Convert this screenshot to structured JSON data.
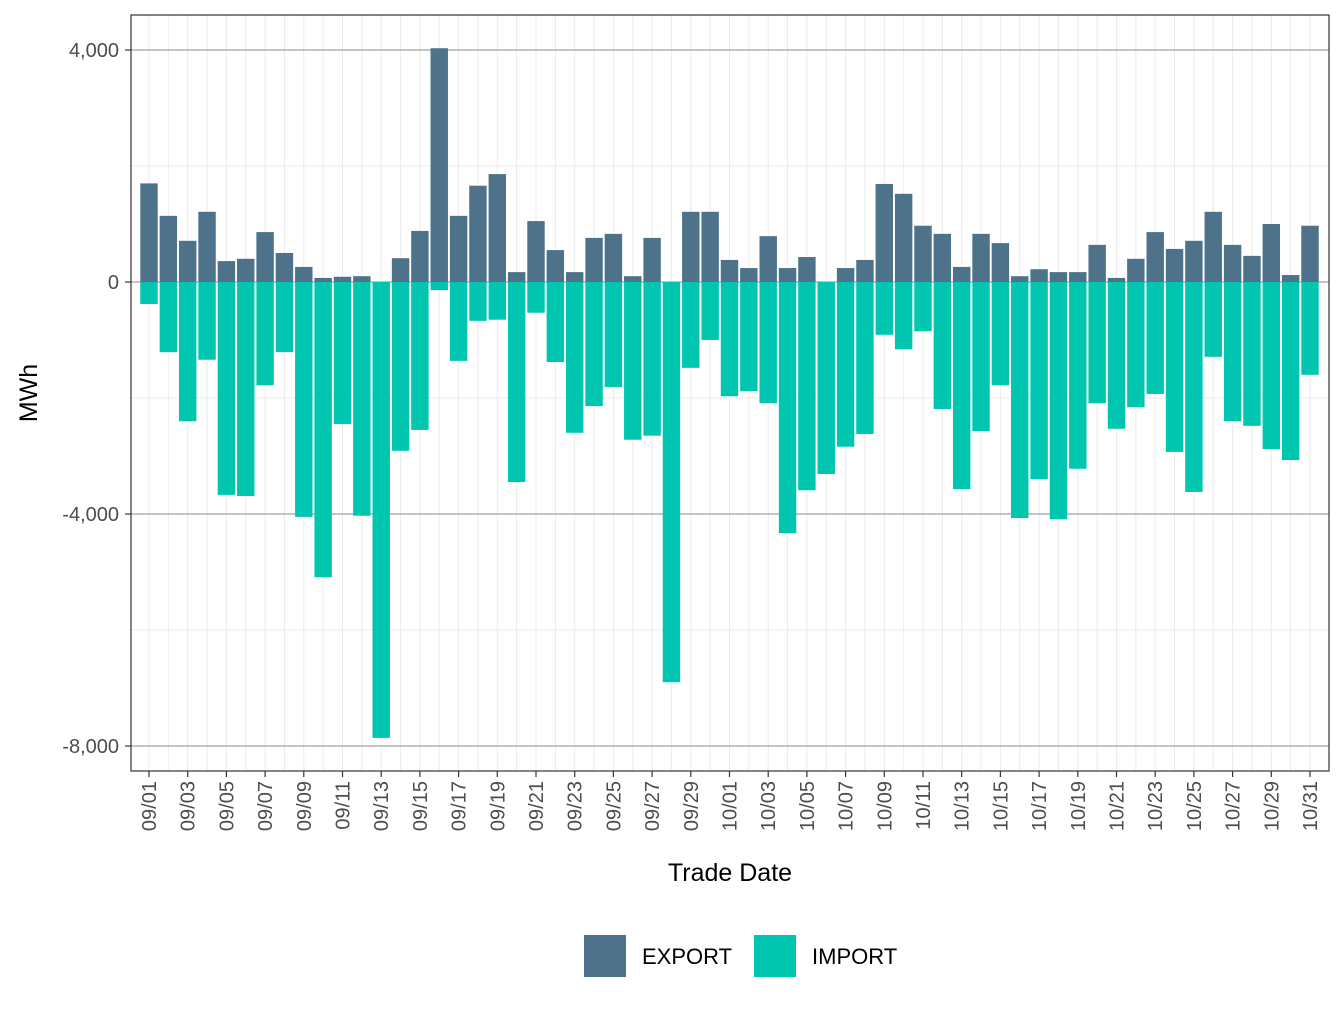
{
  "chart_data": {
    "type": "bar",
    "title": "",
    "xlabel": "Trade Date",
    "ylabel": "MWh",
    "ylim": [
      -8431,
      4603
    ],
    "y_ticks": [
      4000,
      0,
      -4000,
      -8000
    ],
    "y_tick_labels": [
      "4,000",
      "0",
      "-4,000",
      "-8,000"
    ],
    "grid": true,
    "legend_position": "bottom",
    "categories": [
      "09/01",
      "09/02",
      "09/03",
      "09/04",
      "09/05",
      "09/06",
      "09/07",
      "09/08",
      "09/09",
      "09/10",
      "09/11",
      "09/12",
      "09/13",
      "09/14",
      "09/15",
      "09/16",
      "09/17",
      "09/18",
      "09/19",
      "09/20",
      "09/21",
      "09/22",
      "09/23",
      "09/24",
      "09/25",
      "09/26",
      "09/27",
      "09/28",
      "09/29",
      "09/30",
      "10/01",
      "10/02",
      "10/03",
      "10/04",
      "10/05",
      "10/06",
      "10/07",
      "10/08",
      "10/09",
      "10/10",
      "10/11",
      "10/12",
      "10/13",
      "10/14",
      "10/15",
      "10/16",
      "10/17",
      "10/18",
      "10/19",
      "10/20",
      "10/21",
      "10/22",
      "10/23",
      "10/24",
      "10/25",
      "10/26",
      "10/27",
      "10/28",
      "10/29",
      "10/30",
      "10/31"
    ],
    "series": [
      {
        "name": "EXPORT",
        "color": "#4E7289",
        "values": [
          1700,
          1140,
          710,
          1210,
          360,
          400,
          860,
          500,
          260,
          70,
          90,
          100,
          0,
          410,
          880,
          4030,
          1140,
          1660,
          1860,
          170,
          1050,
          550,
          170,
          760,
          830,
          100,
          760,
          0,
          1210,
          1210,
          380,
          240,
          790,
          240,
          430,
          0,
          240,
          380,
          1690,
          1520,
          970,
          830,
          260,
          830,
          670,
          100,
          220,
          170,
          170,
          640,
          70,
          400,
          860,
          570,
          710,
          1210,
          640,
          450,
          1000,
          120,
          970
        ]
      },
      {
        "name": "IMPORT",
        "color": "#00C5AF",
        "values": [
          -380,
          -1210,
          -2400,
          -1340,
          -3670,
          -3690,
          -1780,
          -1210,
          -4050,
          -5090,
          -2450,
          -4030,
          -7860,
          -2910,
          -2550,
          -140,
          -1360,
          -670,
          -650,
          -3450,
          -530,
          -1380,
          -2600,
          -2140,
          -1810,
          -2720,
          -2650,
          -6900,
          -1480,
          -1000,
          -1970,
          -1880,
          -2090,
          -4330,
          -3590,
          -3310,
          -2840,
          -2620,
          -910,
          -1160,
          -850,
          -2190,
          -3570,
          -2570,
          -1780,
          -4070,
          -3400,
          -4090,
          -3220,
          -2090,
          -2530,
          -2160,
          -1930,
          -2930,
          -3620,
          -1290,
          -2400,
          -2480,
          -2880,
          -3070,
          -1600
        ]
      }
    ]
  }
}
